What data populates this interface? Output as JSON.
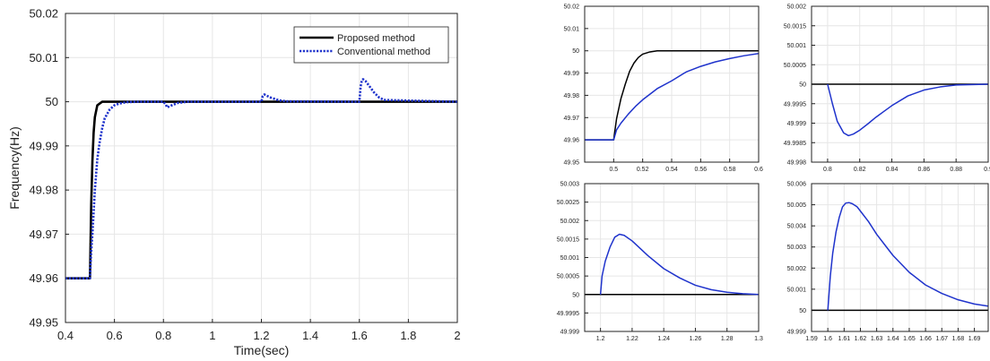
{
  "colors": {
    "proposed": "#000000",
    "conventional": "#1f33cc",
    "grid": "#e6e6e6",
    "frame": "#222222"
  },
  "chart_data": [
    {
      "type": "line",
      "xlabel": "Time(sec)",
      "ylabel": "Frequency(Hz)",
      "xlim": [
        0.4,
        2
      ],
      "ylim": [
        49.95,
        50.02
      ],
      "xticks": [
        "0.4",
        "0.6",
        "0.8",
        "1",
        "1.2",
        "1.4",
        "1.6",
        "1.8",
        "2"
      ],
      "yticks": [
        "49.95",
        "49.96",
        "49.97",
        "49.98",
        "49.99",
        "50",
        "50.01",
        "50.02"
      ],
      "grid": true,
      "legend": "top-right",
      "series": [
        {
          "name": "Proposed method",
          "x": [
            0.4,
            0.5,
            0.505,
            0.51,
            0.515,
            0.52,
            0.53,
            0.55,
            2
          ],
          "y": [
            49.96,
            49.96,
            49.9765,
            49.9865,
            49.993,
            49.9965,
            49.9992,
            50,
            50
          ]
        },
        {
          "name": "Conventional method",
          "x": [
            0.4,
            0.5,
            0.505,
            0.51,
            0.52,
            0.53,
            0.54,
            0.55,
            0.56,
            0.58,
            0.6,
            0.62,
            0.65,
            0.7,
            0.8,
            0.81,
            0.815,
            0.83,
            0.86,
            0.9,
            1.2,
            1.205,
            1.212,
            1.22,
            1.24,
            1.27,
            1.3,
            1.6,
            1.605,
            1.61,
            1.615,
            1.625,
            1.64,
            1.66,
            1.68,
            1.7,
            2
          ],
          "y": [
            49.96,
            49.96,
            49.966,
            49.97,
            49.98,
            49.987,
            49.991,
            49.994,
            49.9962,
            49.9982,
            49.9992,
            49.9996,
            49.9999,
            50,
            50,
            49.99935,
            49.9987,
            49.9991,
            49.99975,
            50,
            50,
            50.0012,
            50.00165,
            50.0014,
            50.0009,
            50.00035,
            50.0001,
            50,
            50.0034,
            50.0048,
            50.0051,
            50.0047,
            50.0036,
            50.0021,
            50.001,
            50.0004,
            50
          ]
        }
      ]
    },
    {
      "type": "line",
      "xlim": [
        0.48,
        0.6
      ],
      "ylim": [
        49.95,
        50.02
      ],
      "xticks": [
        "0.5",
        "0.52",
        "0.54",
        "0.56",
        "0.58",
        "0.6"
      ],
      "yticks": [
        "49.95",
        "49.96",
        "49.97",
        "49.98",
        "49.99",
        "50",
        "50.01",
        "50.02"
      ],
      "grid": true,
      "series": [
        {
          "x": [
            0.48,
            0.5,
            0.502,
            0.505,
            0.508,
            0.511,
            0.514,
            0.517,
            0.52,
            0.525,
            0.53,
            0.6
          ],
          "y": [
            49.96,
            49.96,
            49.9695,
            49.9785,
            49.985,
            49.9908,
            49.9945,
            49.997,
            49.9985,
            49.9995,
            50,
            50
          ]
        },
        {
          "x": [
            0.48,
            0.5,
            0.502,
            0.505,
            0.51,
            0.515,
            0.52,
            0.53,
            0.54,
            0.55,
            0.56,
            0.57,
            0.58,
            0.59,
            0.6
          ],
          "y": [
            49.96,
            49.96,
            49.9645,
            49.9675,
            49.9715,
            49.975,
            49.978,
            49.983,
            49.9865,
            49.9905,
            49.993,
            49.995,
            49.9965,
            49.9978,
            49.9988
          ]
        }
      ]
    },
    {
      "type": "line",
      "xlim": [
        0.79,
        0.9
      ],
      "ylim": [
        49.998,
        50.002
      ],
      "xticks": [
        "0.8",
        "0.82",
        "0.84",
        "0.86",
        "0.88",
        "0.9"
      ],
      "yticks": [
        "49.998",
        "49.9985",
        "49.999",
        "49.9995",
        "50",
        "50.0005",
        "50.001",
        "50.0015",
        "50.002"
      ],
      "grid": true,
      "series": [
        {
          "x": [
            0.79,
            0.9
          ],
          "y": [
            50,
            50
          ]
        },
        {
          "x": [
            0.8,
            0.803,
            0.806,
            0.81,
            0.813,
            0.816,
            0.82,
            0.825,
            0.83,
            0.835,
            0.84,
            0.85,
            0.86,
            0.87,
            0.88,
            0.9
          ],
          "y": [
            50,
            49.9995,
            49.99905,
            49.99875,
            49.99868,
            49.99872,
            49.99882,
            49.99898,
            49.99915,
            49.9993,
            49.99945,
            49.9997,
            49.99985,
            49.99993,
            49.99998,
            50
          ]
        }
      ]
    },
    {
      "type": "line",
      "xlim": [
        1.19,
        1.3
      ],
      "ylim": [
        49.999,
        50.003
      ],
      "xticks": [
        "1.2",
        "1.22",
        "1.24",
        "1.26",
        "1.28",
        "1.3"
      ],
      "yticks": [
        "49.999",
        "49.9995",
        "50",
        "50.0005",
        "50.001",
        "50.0015",
        "50.002",
        "50.0025",
        "50.003"
      ],
      "grid": true,
      "series": [
        {
          "x": [
            1.19,
            1.3
          ],
          "y": [
            50,
            50
          ]
        },
        {
          "x": [
            1.2,
            1.201,
            1.203,
            1.206,
            1.209,
            1.212,
            1.215,
            1.22,
            1.225,
            1.23,
            1.24,
            1.25,
            1.26,
            1.27,
            1.28,
            1.29,
            1.3
          ],
          "y": [
            50,
            50.0005,
            50.0009,
            50.00128,
            50.00155,
            50.00163,
            50.0016,
            50.00145,
            50.00125,
            50.00105,
            50.0007,
            50.00045,
            50.00025,
            50.00013,
            50.00006,
            50.00002,
            50
          ]
        }
      ]
    },
    {
      "type": "line",
      "xlim": [
        1.59,
        1.6985
      ],
      "ylim": [
        49.999,
        50.006
      ],
      "xticks": [
        "1.59",
        "1.6",
        "1.61",
        "1.62",
        "1.63",
        "1.64",
        "1.65",
        "1.66",
        "1.67",
        "1.68",
        "1.69"
      ],
      "yticks": [
        "49.999",
        "50",
        "50.001",
        "50.002",
        "50.003",
        "50.004",
        "50.005",
        "50.006"
      ],
      "grid": true,
      "series": [
        {
          "x": [
            1.59,
            1.6985
          ],
          "y": [
            50,
            50
          ]
        },
        {
          "x": [
            1.6,
            1.6015,
            1.603,
            1.605,
            1.607,
            1.609,
            1.611,
            1.613,
            1.615,
            1.618,
            1.62,
            1.625,
            1.63,
            1.635,
            1.64,
            1.65,
            1.66,
            1.67,
            1.68,
            1.69,
            1.6985
          ],
          "y": [
            50,
            50.0016,
            50.0027,
            50.0037,
            50.0044,
            50.0049,
            50.00508,
            50.0051,
            50.00505,
            50.0049,
            50.0047,
            50.0042,
            50.0036,
            50.0031,
            50.0026,
            50.0018,
            50.0012,
            50.0008,
            50.0005,
            50.0003,
            50.0002
          ]
        }
      ]
    }
  ]
}
